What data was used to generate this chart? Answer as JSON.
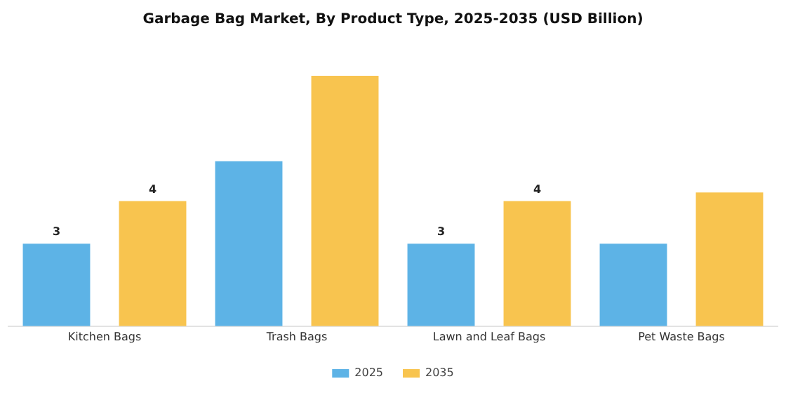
{
  "chart_data": {
    "type": "bar",
    "title": "Garbage Bag Market, By Product Type, 2025-2035 (USD Billion)",
    "categories": [
      "Kitchen Bags",
      "Trash Bags",
      "Lawn and Leaf Bags",
      "Pet Waste Bags"
    ],
    "series": [
      {
        "name": "2025",
        "color": "#5db3e6",
        "values": [
          2.9,
          5.8,
          2.9,
          2.9
        ],
        "value_labels": [
          "3",
          null,
          "3",
          null
        ]
      },
      {
        "name": "2035",
        "color": "#f8c44f",
        "values": [
          4.4,
          8.8,
          4.4,
          4.7
        ],
        "value_labels": [
          "4",
          null,
          "4",
          null
        ]
      }
    ],
    "legend": "bottom",
    "grid": false,
    "tick_labels": "x"
  }
}
